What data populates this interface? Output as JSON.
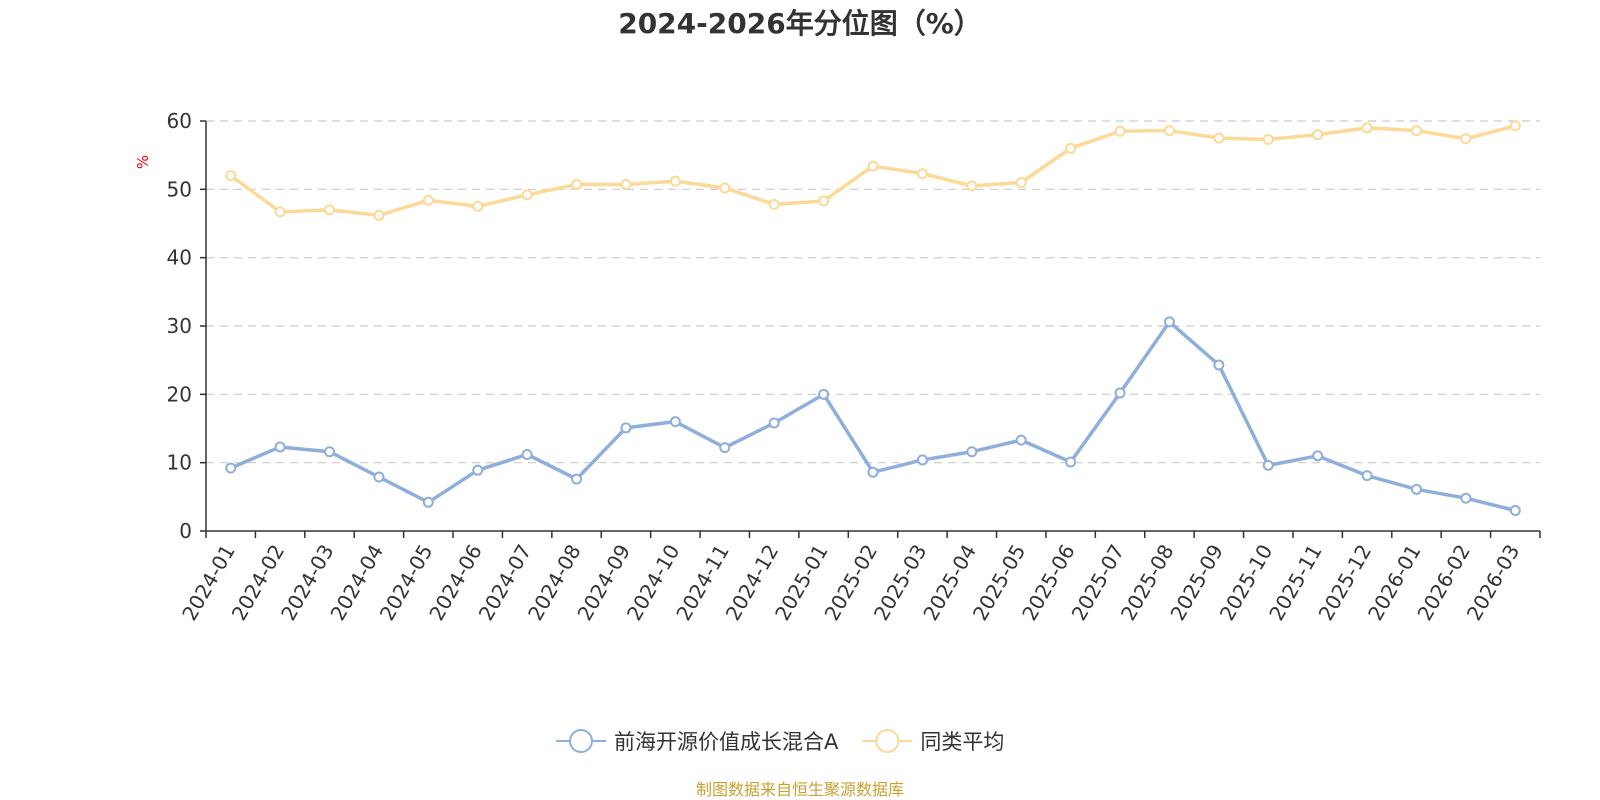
{
  "title": "2024-2026年分位图（%）",
  "source": "制图数据来自恒生聚源数据库",
  "chart_data": {
    "type": "line",
    "title": "2024-2026年分位图（%）",
    "ylabel": "%",
    "xlabel": "",
    "ylim": [
      0,
      60
    ],
    "yticks": [
      0,
      10,
      20,
      30,
      40,
      50,
      60
    ],
    "grid": true,
    "legend_position": "bottom",
    "categories": [
      "2024-01",
      "2024-02",
      "2024-03",
      "2024-04",
      "2024-05",
      "2024-06",
      "2024-07",
      "2024-08",
      "2024-09",
      "2024-10",
      "2024-11",
      "2024-12",
      "2025-01",
      "2025-02",
      "2025-03",
      "2025-04",
      "2025-05",
      "2025-06",
      "2025-07",
      "2025-08",
      "2025-09",
      "2025-10",
      "2025-11",
      "2025-12",
      "2026-01",
      "2026-02",
      "2026-03"
    ],
    "series": [
      {
        "name": "前海开源价值成长混合A",
        "color": "#8eaedb",
        "values": [
          9.2,
          12.3,
          11.6,
          7.9,
          4.2,
          8.9,
          11.2,
          7.6,
          15.1,
          16.0,
          12.2,
          15.8,
          20.0,
          8.6,
          10.4,
          11.6,
          13.3,
          10.1,
          20.2,
          30.6,
          24.3,
          9.6,
          11.0,
          8.1,
          6.1,
          4.8,
          3.0
        ]
      },
      {
        "name": "同类平均",
        "color": "#fcd997",
        "values": [
          52.0,
          46.7,
          47.0,
          46.2,
          48.4,
          47.5,
          49.2,
          50.7,
          50.7,
          51.2,
          50.2,
          47.8,
          48.3,
          53.4,
          52.3,
          50.5,
          51.0,
          56.0,
          58.5,
          58.6,
          57.5,
          57.3,
          58.0,
          59.0,
          58.6,
          57.4,
          59.3
        ]
      }
    ]
  }
}
